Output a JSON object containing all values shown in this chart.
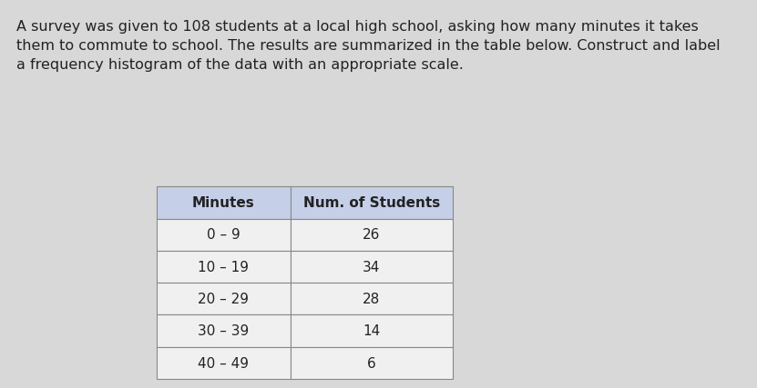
{
  "paragraph": "A survey was given to 108 students at a local high school, asking how many minutes it takes\nthem to commute to school. The results are summarized in the table below. Construct and label\na frequency histogram of the data with an appropriate scale.",
  "table_headers": [
    "Minutes",
    "Num. of Students"
  ],
  "table_rows": [
    [
      "0 – 9",
      "26"
    ],
    [
      "10 – 19",
      "34"
    ],
    [
      "20 – 29",
      "28"
    ],
    [
      "30 – 39",
      "14"
    ],
    [
      "40 – 49",
      "6"
    ]
  ],
  "background_color": "#d8d8d8",
  "table_header_bg": "#c5cfe8",
  "table_row_bg": "#f0f0f0",
  "table_border_color": "#888888",
  "text_color": "#222222",
  "para_fontsize": 11.5,
  "table_fontsize": 11,
  "header_fontsize": 11
}
